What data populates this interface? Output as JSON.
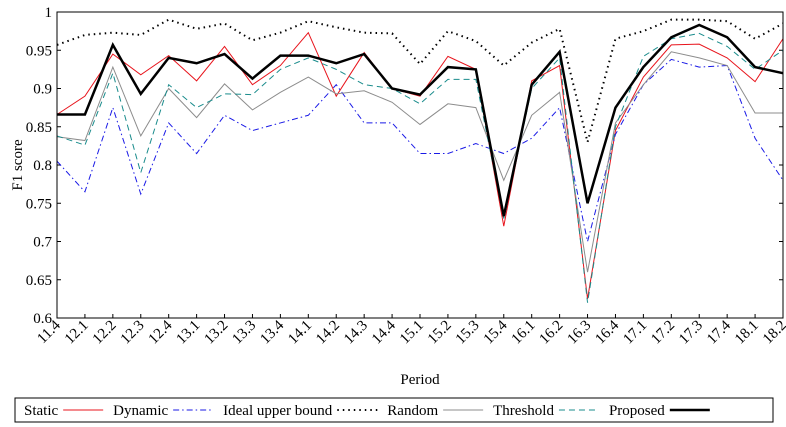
{
  "chart_data": {
    "type": "line",
    "ylabel": "F1 score",
    "xlabel": "Period",
    "categories": [
      "11.4",
      "12.1",
      "12.2",
      "12.3",
      "12.4",
      "13.1",
      "13.2",
      "13.3",
      "13.4",
      "14.1",
      "14.2",
      "14.3",
      "14.4",
      "15.1",
      "15.2",
      "15.3",
      "15.4",
      "16.1",
      "16.2",
      "16.3",
      "16.4",
      "17.1",
      "17.2",
      "17.3",
      "17.4",
      "18.1",
      "18.2"
    ],
    "ylim": [
      0.6,
      1
    ],
    "yticks": [
      0.6,
      0.65,
      0.7,
      0.75,
      0.8,
      0.85,
      0.9,
      0.95,
      1
    ],
    "series": [
      {
        "name": "Static",
        "color": "#e8141c",
        "style": "solid",
        "width": 1,
        "values": [
          0.866,
          0.89,
          0.945,
          0.918,
          0.943,
          0.91,
          0.955,
          0.905,
          0.93,
          0.973,
          0.89,
          0.947,
          0.9,
          0.89,
          0.942,
          0.925,
          0.72,
          0.91,
          0.93,
          0.625,
          0.845,
          0.915,
          0.957,
          0.958,
          0.94,
          0.909,
          0.965
        ]
      },
      {
        "name": "Dynamic",
        "color": "#1a1ae6",
        "style": "dashdot",
        "width": 1,
        "values": [
          0.805,
          0.765,
          0.875,
          0.762,
          0.855,
          0.815,
          0.865,
          0.845,
          0.855,
          0.865,
          0.905,
          0.855,
          0.855,
          0.815,
          0.815,
          0.828,
          0.815,
          0.835,
          0.875,
          0.7,
          0.84,
          0.905,
          0.938,
          0.928,
          0.93,
          0.835,
          0.78
        ]
      },
      {
        "name": "Ideal upper bound",
        "color": "#000000",
        "style": "dotted",
        "width": 2,
        "values": [
          0.957,
          0.97,
          0.973,
          0.97,
          0.99,
          0.978,
          0.985,
          0.963,
          0.973,
          0.988,
          0.98,
          0.973,
          0.972,
          0.932,
          0.975,
          0.962,
          0.93,
          0.96,
          0.978,
          0.83,
          0.965,
          0.975,
          0.99,
          0.99,
          0.988,
          0.965,
          0.985
        ]
      },
      {
        "name": "Random",
        "color": "#8c8c8c",
        "style": "solid",
        "width": 1,
        "values": [
          0.837,
          0.832,
          0.928,
          0.838,
          0.9,
          0.862,
          0.906,
          0.872,
          0.895,
          0.915,
          0.893,
          0.897,
          0.882,
          0.853,
          0.88,
          0.875,
          0.78,
          0.865,
          0.895,
          0.66,
          0.855,
          0.905,
          0.948,
          0.94,
          0.93,
          0.868,
          0.868
        ]
      },
      {
        "name": "Threshold",
        "color": "#1a8c8c",
        "style": "dashed",
        "width": 1,
        "values": [
          0.838,
          0.826,
          0.92,
          0.79,
          0.905,
          0.875,
          0.893,
          0.892,
          0.925,
          0.94,
          0.925,
          0.905,
          0.9,
          0.88,
          0.912,
          0.912,
          0.73,
          0.9,
          0.94,
          0.62,
          0.85,
          0.942,
          0.965,
          0.972,
          0.955,
          0.925,
          0.95
        ]
      },
      {
        "name": "Proposed",
        "color": "#000000",
        "style": "solid",
        "width": 2.5,
        "values": [
          0.866,
          0.866,
          0.957,
          0.893,
          0.94,
          0.933,
          0.945,
          0.913,
          0.943,
          0.943,
          0.933,
          0.945,
          0.9,
          0.892,
          0.928,
          0.925,
          0.733,
          0.905,
          0.948,
          0.75,
          0.875,
          0.928,
          0.967,
          0.983,
          0.967,
          0.928,
          0.92
        ]
      }
    ]
  }
}
